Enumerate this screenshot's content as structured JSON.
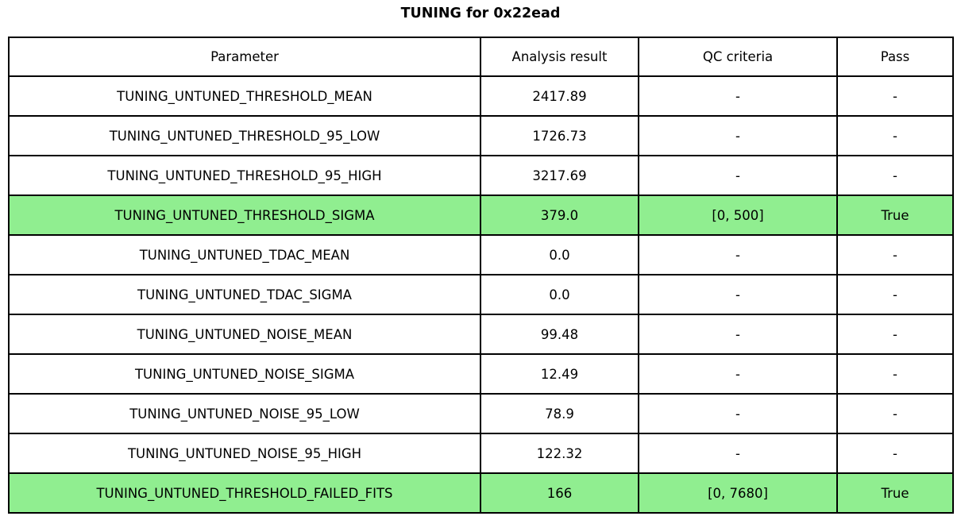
{
  "colors": {
    "highlight_pass_green": "#90EE90",
    "border": "#000000",
    "background": "#ffffff",
    "text": "#000000"
  },
  "chart_data": {
    "type": "table",
    "title": "TUNING for 0x22ead",
    "columns": [
      "Parameter",
      "Analysis result",
      "QC criteria",
      "Pass"
    ],
    "rows": [
      [
        "TUNING_UNTUNED_THRESHOLD_MEAN",
        "2417.89",
        "-",
        "-"
      ],
      [
        "TUNING_UNTUNED_THRESHOLD_95_LOW",
        "1726.73",
        "-",
        "-"
      ],
      [
        "TUNING_UNTUNED_THRESHOLD_95_HIGH",
        "3217.69",
        "-",
        "-"
      ],
      [
        "TUNING_UNTUNED_THRESHOLD_SIGMA",
        "379.0",
        "[0, 500]",
        "True"
      ],
      [
        "TUNING_UNTUNED_TDAC_MEAN",
        "0.0",
        "-",
        "-"
      ],
      [
        "TUNING_UNTUNED_TDAC_SIGMA",
        "0.0",
        "-",
        "-"
      ],
      [
        "TUNING_UNTUNED_NOISE_MEAN",
        "99.48",
        "-",
        "-"
      ],
      [
        "TUNING_UNTUNED_NOISE_SIGMA",
        "12.49",
        "-",
        "-"
      ],
      [
        "TUNING_UNTUNED_NOISE_95_LOW",
        "78.9",
        "-",
        "-"
      ],
      [
        "TUNING_UNTUNED_NOISE_95_HIGH",
        "122.32",
        "-",
        "-"
      ],
      [
        "TUNING_UNTUNED_THRESHOLD_FAILED_FITS",
        "166",
        "[0, 7680]",
        "True"
      ]
    ],
    "highlighted_rows": [
      3,
      10
    ],
    "layout": {
      "header_row": true,
      "grid": true,
      "column_align": "center"
    }
  }
}
